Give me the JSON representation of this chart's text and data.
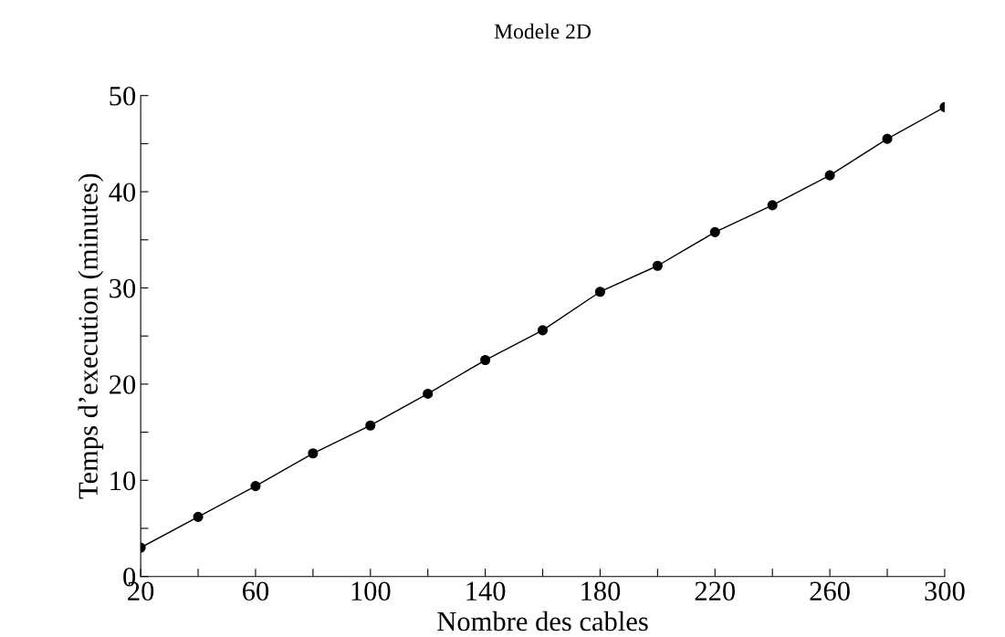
{
  "chart_data": {
    "type": "line",
    "title": "Modele 2D",
    "xlabel": "Nombre des cables",
    "ylabel": "Temps d’execution (minutes)",
    "x": [
      20,
      40,
      60,
      80,
      100,
      120,
      140,
      160,
      180,
      200,
      220,
      240,
      260,
      280,
      300
    ],
    "series": [
      {
        "color": "#000000",
        "values": [
          3.0,
          6.2,
          9.4,
          12.8,
          15.7,
          19.0,
          22.5,
          25.6,
          29.6,
          32.3,
          35.8,
          38.6,
          41.7,
          45.5,
          48.8
        ]
      }
    ],
    "xlim": [
      20,
      300
    ],
    "ylim": [
      0,
      50
    ],
    "xticks": [
      20,
      {
        "value": 40,
        "label": null
      },
      60,
      {
        "value": 80,
        "label": null
      },
      100,
      {
        "value": 120,
        "label": null
      },
      140,
      {
        "value": 160,
        "label": null
      },
      180,
      {
        "value": 200,
        "label": null
      },
      220,
      {
        "value": 240,
        "label": null
      },
      260,
      {
        "value": 280,
        "label": null
      },
      300
    ],
    "yticks": [
      0,
      {
        "value": 5,
        "label": null
      },
      10,
      {
        "value": 15,
        "label": null
      },
      20,
      {
        "value": 25,
        "label": null
      },
      30,
      {
        "value": 35,
        "label": null
      },
      40,
      {
        "value": 45,
        "label": null
      },
      50
    ],
    "marker": "circle",
    "line_style": "solid",
    "grid": false,
    "legend": false
  }
}
